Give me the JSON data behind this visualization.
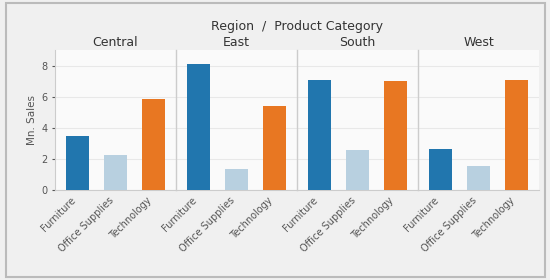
{
  "title": "Region  /  Product Category",
  "ylabel": "Mn. Sales",
  "regions": [
    "Central",
    "East",
    "South",
    "West"
  ],
  "categories": [
    "Furniture",
    "Office Supplies",
    "Technology"
  ],
  "values": {
    "Central": [
      3.5,
      2.3,
      5.9
    ],
    "East": [
      8.1,
      1.35,
      5.45
    ],
    "South": [
      7.1,
      2.6,
      7.05
    ],
    "West": [
      2.65,
      1.6,
      7.1
    ]
  },
  "colors": {
    "Furniture": "#2176AE",
    "Office Supplies": "#B8D0E0",
    "Technology": "#E87722"
  },
  "ylim": [
    0,
    9
  ],
  "yticks": [
    0,
    2,
    4,
    6,
    8
  ],
  "fig_bg": "#F0F0F0",
  "panel_bg": "#FAFAFA",
  "grid_color": "#E8E8E8",
  "divider_color": "#CCCCCC",
  "region_label_fontsize": 9,
  "title_fontsize": 9,
  "ylabel_fontsize": 7.5,
  "tick_fontsize": 7,
  "bar_width": 0.6
}
